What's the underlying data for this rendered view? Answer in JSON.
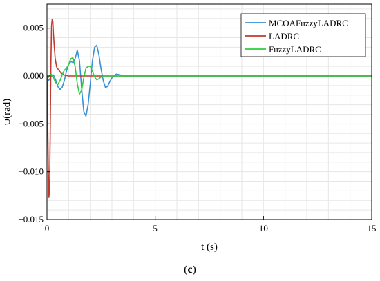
{
  "caption": {
    "open": "(",
    "letter": "c",
    "close": ")"
  },
  "colors": {
    "grid": "#e6e6e6",
    "axis": "#000000"
  },
  "chart_data": {
    "type": "line",
    "xlabel": "t (s)",
    "ylabel": "ψ(rad)",
    "xlim": [
      0,
      15
    ],
    "ylim": [
      -0.015,
      0.0075
    ],
    "xticks": [
      0,
      5,
      10,
      15
    ],
    "xtick_labels": [
      "0",
      "5",
      "10",
      "15"
    ],
    "yticks": [
      0.005,
      0.0,
      -0.005,
      -0.01,
      -0.015
    ],
    "ytick_labels": [
      "0.005",
      "0.000",
      "−0.005",
      "−0.010",
      "−0.015"
    ],
    "grid": true,
    "legend_position": "top-right",
    "series": [
      {
        "name": "MCOAFuzzyLADRC",
        "color": "#3b8fd6",
        "x": [
          0,
          0.03,
          0.06,
          0.1,
          0.16,
          0.22,
          0.3,
          0.4,
          0.5,
          0.6,
          0.7,
          0.8,
          0.9,
          1.0,
          1.1,
          1.2,
          1.3,
          1.4,
          1.5,
          1.6,
          1.7,
          1.8,
          1.9,
          2.0,
          2.1,
          2.2,
          2.3,
          2.4,
          2.5,
          2.6,
          2.7,
          2.8,
          2.9,
          3.0,
          3.2,
          3.4,
          3.6,
          3.8,
          15
        ],
        "y": [
          0,
          -0.0002,
          -0.0005,
          -0.0004,
          -0.0002,
          0.0,
          0.0001,
          -0.0004,
          -0.0011,
          -0.0014,
          -0.0012,
          -0.0005,
          0.0005,
          0.0012,
          0.0015,
          0.0014,
          0.0018,
          0.0027,
          0.0016,
          -0.0013,
          -0.0037,
          -0.0042,
          -0.003,
          -0.0008,
          0.0016,
          0.003,
          0.0032,
          0.0022,
          0.0007,
          -0.0005,
          -0.0012,
          -0.0011,
          -0.0006,
          -0.0002,
          0.0002,
          0.0001,
          0.0,
          0.0,
          0.0
        ]
      },
      {
        "name": "LADRC",
        "color": "#c0392b",
        "x": [
          0,
          0.03,
          0.06,
          0.09,
          0.12,
          0.15,
          0.18,
          0.21,
          0.24,
          0.27,
          0.3,
          0.34,
          0.38,
          0.45,
          0.55,
          0.65,
          0.8,
          1.0,
          1.3,
          1.6,
          2.0,
          2.5,
          3.0,
          15
        ],
        "y": [
          0,
          -0.004,
          -0.0095,
          -0.0127,
          -0.0118,
          -0.006,
          0.001,
          0.0052,
          0.0059,
          0.0057,
          0.0044,
          0.003,
          0.0018,
          0.0009,
          0.0006,
          0.0003,
          0.0001,
          0.0,
          0.0,
          0.0,
          0.0,
          0.0,
          0.0,
          0.0
        ]
      },
      {
        "name": "FuzzyLADRC",
        "color": "#2ecc40",
        "x": [
          0,
          0.05,
          0.1,
          0.2,
          0.3,
          0.4,
          0.5,
          0.6,
          0.7,
          0.8,
          0.9,
          1.0,
          1.1,
          1.2,
          1.3,
          1.4,
          1.5,
          1.6,
          1.7,
          1.8,
          1.9,
          2.0,
          2.1,
          2.2,
          2.3,
          2.4,
          2.5,
          2.6,
          2.7,
          2.8,
          3.0,
          15
        ],
        "y": [
          0,
          -0.0002,
          0.0,
          0.0002,
          -0.0002,
          -0.0007,
          -0.0009,
          -0.0005,
          0.0001,
          0.0006,
          0.0008,
          0.0012,
          0.0018,
          0.0019,
          0.001,
          -0.0008,
          -0.0019,
          -0.0015,
          -0.0002,
          0.0008,
          0.001,
          0.001,
          0.0005,
          -0.0001,
          -0.0004,
          -0.0003,
          -0.0001,
          0.0,
          0.0,
          0.0,
          0.0,
          0.0
        ]
      }
    ]
  }
}
